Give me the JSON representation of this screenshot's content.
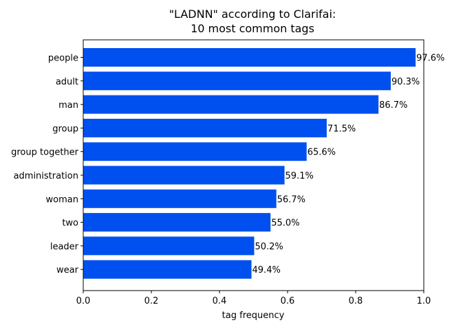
{
  "chart_data": {
    "type": "bar",
    "orientation": "horizontal",
    "title_lines": [
      "\"LADNN\" according to Clarifai:",
      "10 most common tags"
    ],
    "xlabel": "tag frequency",
    "ylabel": "",
    "xlim": [
      0,
      1
    ],
    "xticks": [
      "0.0",
      "0.2",
      "0.4",
      "0.6",
      "0.8",
      "1.0"
    ],
    "grid": false,
    "bar_color": "#0050ef",
    "categories": [
      "people",
      "adult",
      "man",
      "group",
      "group together",
      "administration",
      "woman",
      "two",
      "leader",
      "wear"
    ],
    "values": [
      0.976,
      0.903,
      0.867,
      0.715,
      0.656,
      0.591,
      0.567,
      0.55,
      0.502,
      0.494
    ],
    "value_labels": [
      "97.6%",
      "90.3%",
      "86.7%",
      "71.5%",
      "65.6%",
      "59.1%",
      "56.7%",
      "55.0%",
      "50.2%",
      "49.4%"
    ]
  }
}
